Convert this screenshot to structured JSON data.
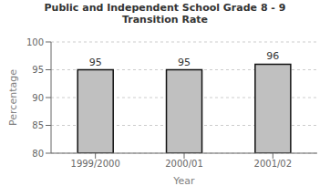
{
  "chart_data": {
    "type": "bar",
    "title": "Public and Independent School Grade 8 - 9\nTransition Rate",
    "categories": [
      "1999/2000",
      "2000/01",
      "2001/02"
    ],
    "values": [
      95,
      95,
      96
    ],
    "color": "#c0c0c0",
    "xlabel": "Year",
    "ylabel": "Percentage",
    "ylim": [
      80,
      100
    ],
    "yticks": [
      80,
      85,
      90,
      95,
      100
    ],
    "grid": true,
    "data_labels": true
  }
}
